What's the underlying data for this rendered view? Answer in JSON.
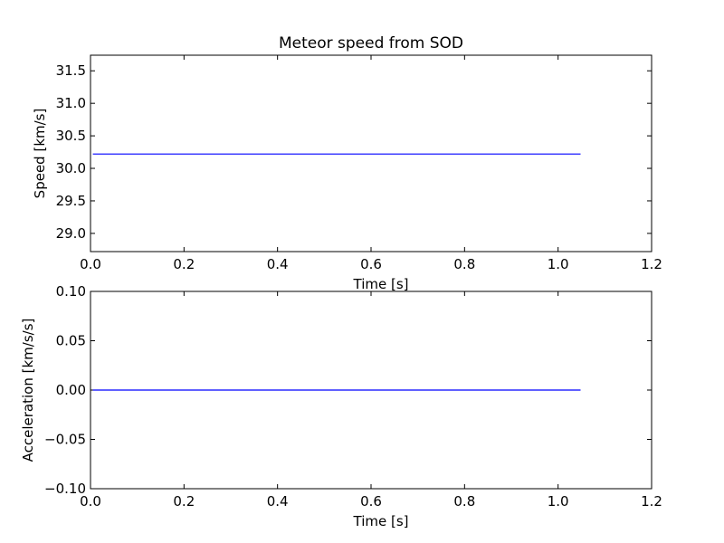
{
  "title": "Meteor speed from  SOD",
  "colors": {
    "line": "#0000ff",
    "axes": "#000000",
    "background": "#ffffff"
  },
  "chart_data": [
    {
      "type": "line",
      "title": "Meteor speed from  SOD",
      "xlabel": "Time [s]",
      "ylabel": "Speed [km/s]",
      "xlim": [
        0.0,
        1.2
      ],
      "ylim": [
        28.72,
        31.74
      ],
      "xticks": [
        "0.0",
        "0.2",
        "0.4",
        "0.6",
        "0.8",
        "1.0",
        "1.2"
      ],
      "yticks": [
        "29.0",
        "29.5",
        "30.0",
        "30.5",
        "31.0",
        "31.5"
      ],
      "grid": false,
      "series": [
        {
          "x": [
            0.005,
            1.048
          ],
          "y": [
            30.22,
            30.22
          ]
        }
      ]
    },
    {
      "type": "line",
      "title": "",
      "xlabel": "Time [s]",
      "ylabel": "Acceleration [km/s/s]",
      "xlim": [
        0.0,
        1.2
      ],
      "ylim": [
        -0.1,
        0.1
      ],
      "xticks": [
        "0.0",
        "0.2",
        "0.4",
        "0.6",
        "0.8",
        "1.0",
        "1.2"
      ],
      "yticks": [
        "0.10",
        "0.05",
        "0.00",
        "−0.05",
        "−0.10"
      ],
      "grid": false,
      "series": [
        {
          "x": [
            0.005,
            1.048
          ],
          "y": [
            0.0,
            0.0
          ]
        }
      ]
    }
  ]
}
